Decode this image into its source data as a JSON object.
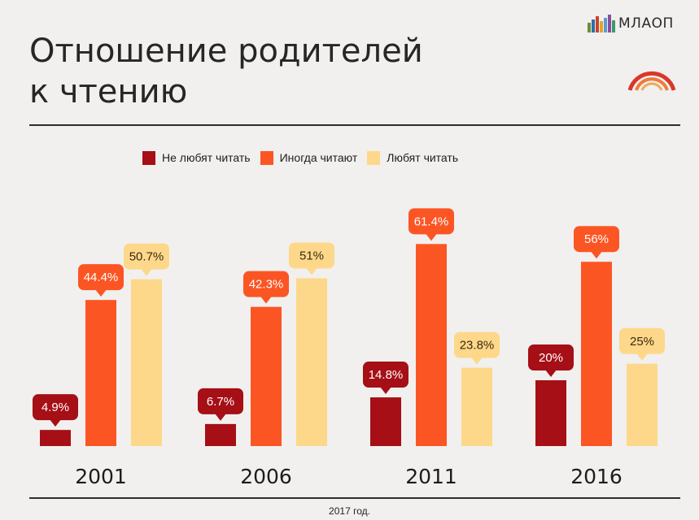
{
  "header": {
    "title_line1": "Отношение родителей",
    "title_line2": "к чтению",
    "logo_text": "МЛАОП"
  },
  "legend": [
    {
      "label": "Не любят читать",
      "color": "#a50f15"
    },
    {
      "label": "Иногда читают",
      "color": "#fc5524"
    },
    {
      "label": "Любят читать",
      "color": "#fdd88a"
    }
  ],
  "footnote": "2017 год.",
  "chart_data": {
    "type": "bar",
    "categories": [
      "2001",
      "2006",
      "2011",
      "2016"
    ],
    "series": [
      {
        "name": "Не любят читать",
        "values": [
          4.9,
          6.7,
          14.8,
          20
        ],
        "labels": [
          "4.9%",
          "6.7%",
          "14.8%",
          "20%"
        ]
      },
      {
        "name": "Иногда читают",
        "values": [
          44.4,
          42.3,
          61.4,
          56
        ],
        "labels": [
          "44.4%",
          "42.3%",
          "61.4%",
          "56%"
        ]
      },
      {
        "name": "Любят читать",
        "values": [
          50.7,
          51,
          23.8,
          25
        ],
        "labels": [
          "50.7%",
          "51%",
          "23.8%",
          "25%"
        ]
      }
    ],
    "colors": [
      "#a50f15",
      "#fc5524",
      "#fdd88a"
    ],
    "label_colors": [
      "#ffffff",
      "#ffffff",
      "#3a2a10"
    ],
    "title": "Отношение родителей к чтению",
    "ylim": [
      0,
      65
    ],
    "grid": false,
    "legend_position": "top-center"
  }
}
